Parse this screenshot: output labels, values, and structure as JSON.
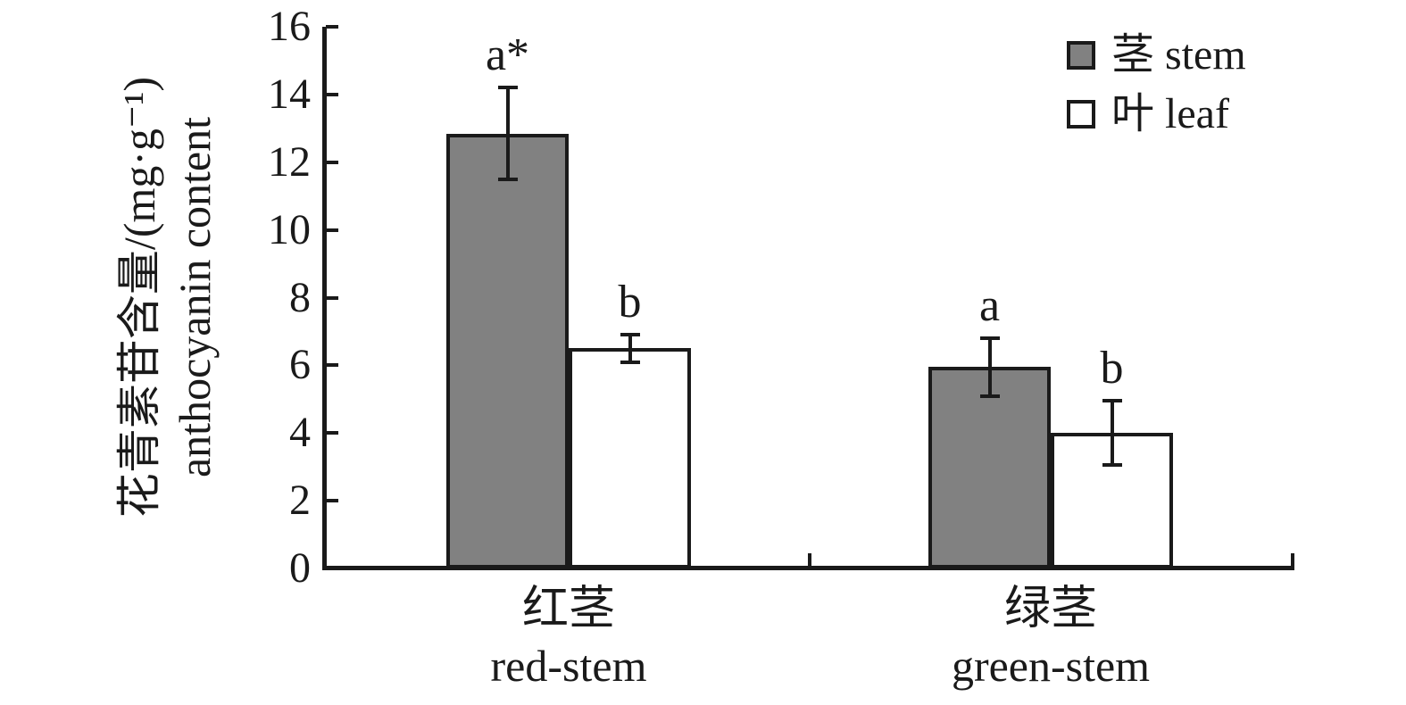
{
  "figure": {
    "background": "#ffffff",
    "axis_color": "#1a1a1a"
  },
  "y_axis": {
    "label_cn": "花青素苷含量/(mg·g⁻¹)",
    "label_en": "anthocyanin content",
    "min": 0,
    "max": 16,
    "tick_step": 2,
    "ticks": [
      0,
      2,
      4,
      6,
      8,
      10,
      12,
      14,
      16
    ]
  },
  "x_axis": {
    "categories": [
      {
        "label_cn": "红茎",
        "label_en": "red-stem"
      },
      {
        "label_cn": "绿茎",
        "label_en": "green-stem"
      }
    ]
  },
  "legend": {
    "items": [
      {
        "label": "茎 stem",
        "swatch": "#818181"
      },
      {
        "label": "叶 leaf",
        "swatch": "#ffffff"
      }
    ]
  },
  "chart_data": {
    "type": "bar",
    "title": "",
    "ylabel": "花青素苷含量/(mg·g⁻¹) anthocyanin content",
    "xlabel": "",
    "categories": [
      "红茎 red-stem",
      "绿茎 green-stem"
    ],
    "series": [
      {
        "name": "茎 stem",
        "fill": "#818181",
        "values": [
          12.85,
          5.95
        ],
        "errors": [
          1.35,
          0.85
        ],
        "sig_labels": [
          "a*",
          "a"
        ]
      },
      {
        "name": "叶 leaf",
        "fill": "#ffffff",
        "values": [
          6.5,
          4.0
        ],
        "errors": [
          0.4,
          0.95
        ],
        "sig_labels": [
          "b",
          "b"
        ]
      }
    ],
    "ylim": [
      0,
      16
    ],
    "ytick_step": 2,
    "grid": false,
    "legend_position": "top-right"
  }
}
